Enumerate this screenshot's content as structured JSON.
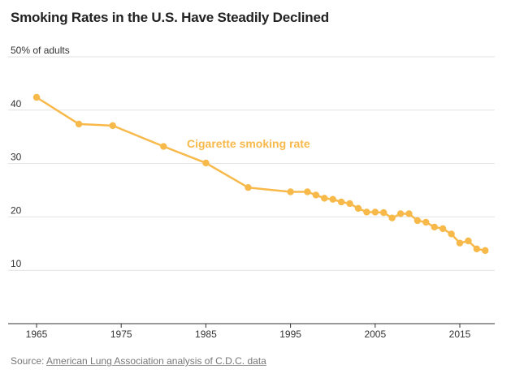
{
  "title": "Smoking Rates in the U.S. Have Steadily Declined",
  "source": {
    "label": "Source:",
    "link_text": "American Lung Association analysis of C.D.C. data"
  },
  "colors": {
    "series": "#f8b94b",
    "grid": "#e2e2e2",
    "axis": "#333333",
    "text": "#333333"
  },
  "chart_data": {
    "type": "line",
    "title": "Smoking Rates in the U.S. Have Steadily Declined",
    "xlabel": "",
    "ylabel": "",
    "y_unit_label": "50% of adults",
    "ylim": [
      0,
      50
    ],
    "xlim": [
      1963.5,
      2019.5
    ],
    "y_ticks": [
      10,
      20,
      30,
      40,
      50
    ],
    "y_tick_labels": [
      "10",
      "20",
      "30",
      "40",
      "50% of adults"
    ],
    "x_ticks": [
      1965,
      1975,
      1985,
      1995,
      2005,
      2015
    ],
    "x_tick_labels": [
      "1965",
      "1975",
      "1985",
      "1995",
      "2005",
      "2015"
    ],
    "grid": true,
    "series": [
      {
        "name": "Cigarette smoking rate",
        "x": [
          1965,
          1970,
          1974,
          1980,
          1985,
          1990,
          1995,
          1997,
          1998,
          1999,
          2000,
          2001,
          2002,
          2003,
          2004,
          2005,
          2006,
          2007,
          2008,
          2009,
          2010,
          2011,
          2012,
          2013,
          2014,
          2015,
          2016,
          2017,
          2018
        ],
        "y": [
          42.4,
          37.4,
          37.1,
          33.2,
          30.1,
          25.5,
          24.7,
          24.7,
          24.1,
          23.5,
          23.3,
          22.8,
          22.5,
          21.6,
          20.9,
          20.9,
          20.8,
          19.8,
          20.6,
          20.6,
          19.3,
          19.0,
          18.1,
          17.8,
          16.8,
          15.1,
          15.5,
          14.0,
          13.7
        ]
      }
    ]
  }
}
